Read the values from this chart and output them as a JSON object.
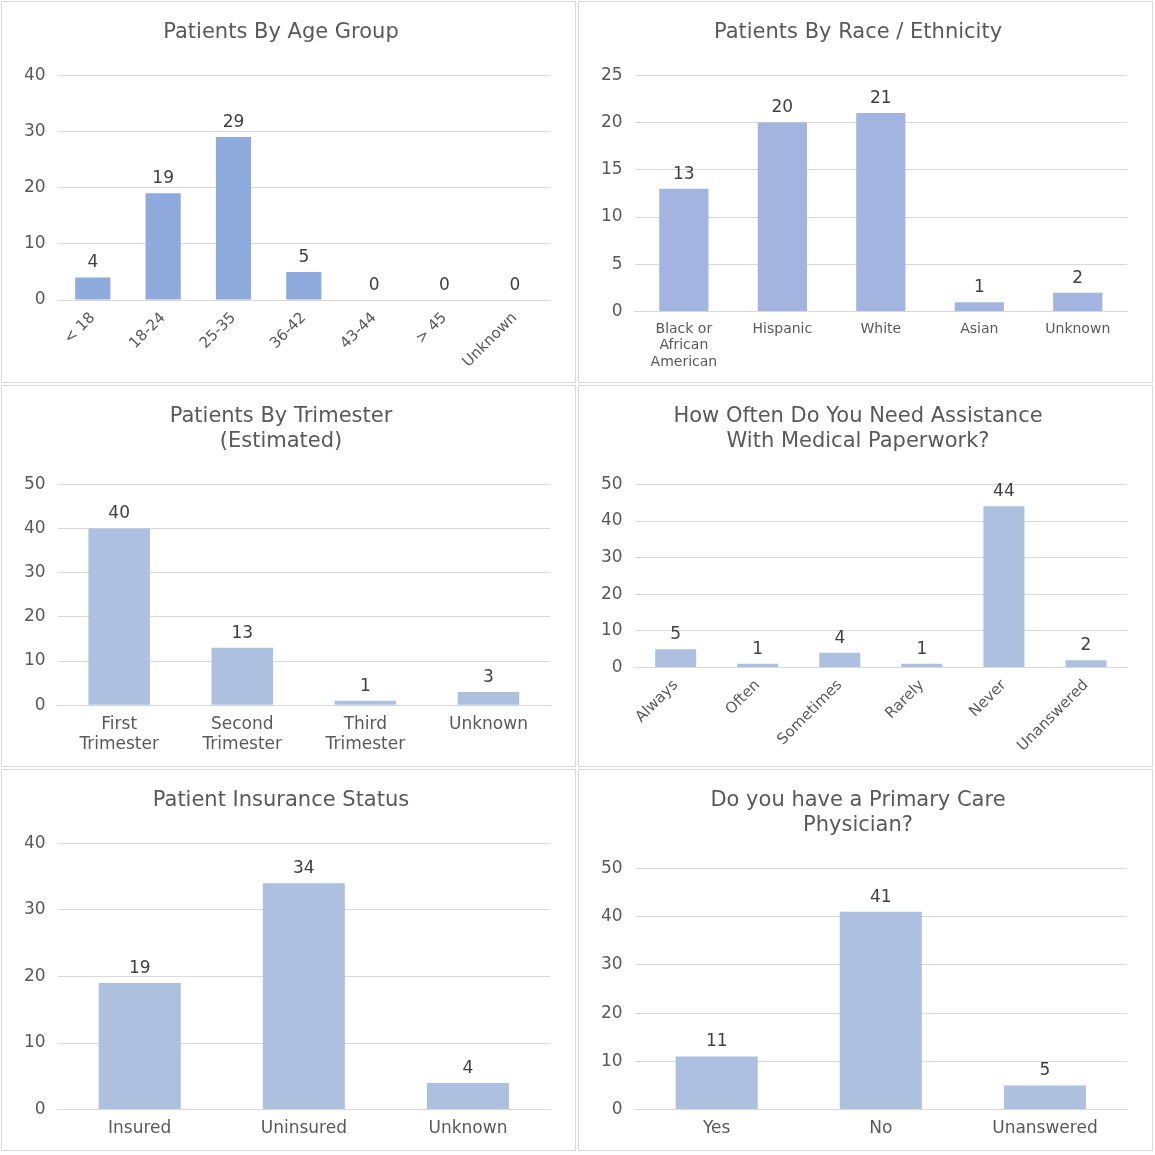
{
  "chart_data": [
    {
      "type": "bar",
      "title": "Patients By Age Group",
      "categories": [
        "< 18",
        "18-24",
        "25-35",
        "36-42",
        "43-44",
        "> 45",
        "Unknown"
      ],
      "values": [
        4,
        19,
        29,
        5,
        0,
        0,
        0
      ],
      "color": "#8faadc",
      "ylim": [
        0,
        40
      ],
      "yticks": [
        0,
        10,
        20,
        30,
        40
      ],
      "grid": "y",
      "data_labels": true
    },
    {
      "type": "bar",
      "title": "Patients By Race / Ethnicity",
      "categories": [
        "Black or African American",
        "Hispanic",
        "White",
        "Asian",
        "Unknown"
      ],
      "values": [
        13,
        20,
        21,
        1,
        2
      ],
      "color": "#a4b4e0",
      "ylim": [
        0,
        25
      ],
      "yticks": [
        0,
        5,
        10,
        15,
        20,
        25
      ],
      "grid": "y",
      "data_labels": true
    },
    {
      "type": "bar",
      "title": "Patients By Trimester (Estimated)",
      "categories": [
        "First Trimester",
        "Second Trimester",
        "Third Trimester",
        "Unknown"
      ],
      "values": [
        40,
        13,
        1,
        3
      ],
      "color": "#adc0e0",
      "ylim": [
        0,
        50
      ],
      "yticks": [
        0,
        10,
        20,
        30,
        40,
        50
      ],
      "grid": "y",
      "data_labels": true
    },
    {
      "type": "bar",
      "title": "How Often Do You Need Assistance With Medical Paperwork?",
      "categories": [
        "Always",
        "Often",
        "Sometimes",
        "Rarely",
        "Never",
        "Unanswered"
      ],
      "values": [
        5,
        1,
        4,
        1,
        44,
        2
      ],
      "color": "#adc0e0",
      "ylim": [
        0,
        50
      ],
      "yticks": [
        0,
        10,
        20,
        30,
        40,
        50
      ],
      "grid": "y",
      "data_labels": true
    },
    {
      "type": "bar",
      "title": "Patient Insurance Status",
      "categories": [
        "Insured",
        "Uninsured",
        "Unknown"
      ],
      "values": [
        19,
        34,
        4
      ],
      "color": "#adc0e0",
      "ylim": [
        0,
        40
      ],
      "yticks": [
        0,
        10,
        20,
        30,
        40
      ],
      "grid": "y",
      "data_labels": true
    },
    {
      "type": "bar",
      "title": "Do you have a Primary Care Physician?",
      "categories": [
        "Yes",
        "No",
        "Unanswered"
      ],
      "values": [
        11,
        41,
        5
      ],
      "color": "#adc0e0",
      "ylim": [
        0,
        50
      ],
      "yticks": [
        0,
        10,
        20,
        30,
        40,
        50
      ],
      "grid": "y",
      "data_labels": true
    }
  ]
}
